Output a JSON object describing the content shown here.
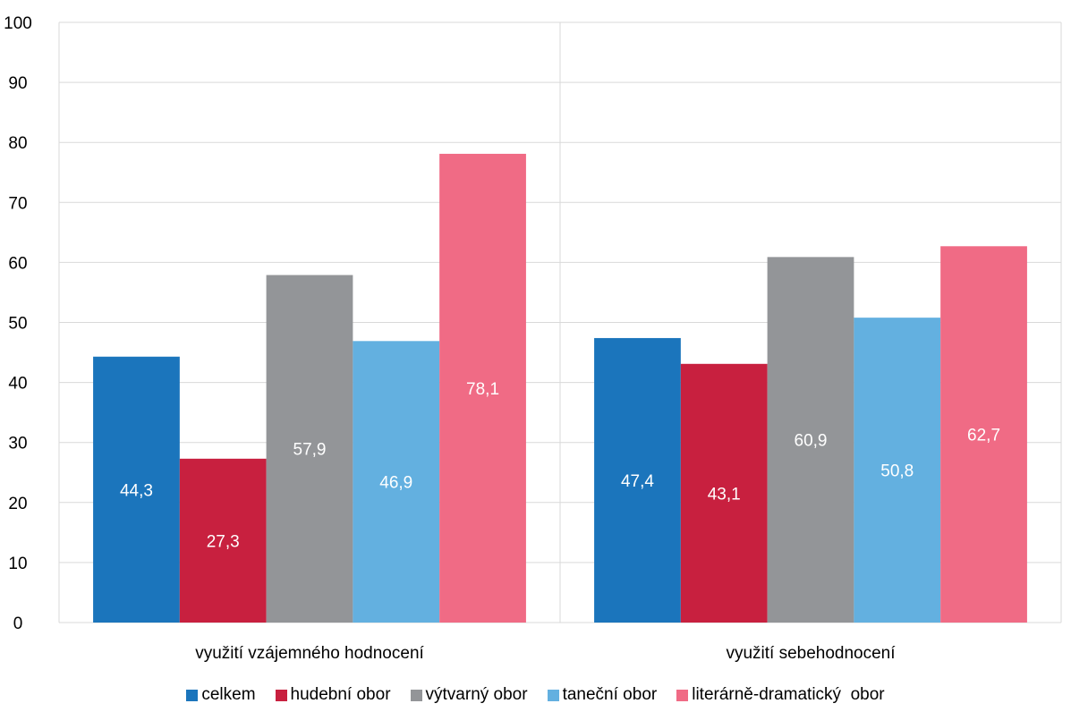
{
  "chart_data": {
    "type": "bar",
    "categories": [
      "využití vzájemného hodnocení",
      "využití sebehodnocení"
    ],
    "series": [
      {
        "name": "celkem",
        "color": "#1b75bc",
        "values": [
          44.3,
          47.4
        ],
        "labels": [
          "44,3",
          "47,4"
        ]
      },
      {
        "name": "hudební obor",
        "color": "#c8203f",
        "values": [
          27.3,
          43.1
        ],
        "labels": [
          "27,3",
          "43,1"
        ]
      },
      {
        "name": "výtvarný obor",
        "color": "#939598",
        "values": [
          57.9,
          60.9
        ],
        "labels": [
          "57,9",
          "60,9"
        ]
      },
      {
        "name": "taneční obor",
        "color": "#63b0e0",
        "values": [
          46.9,
          50.8
        ],
        "labels": [
          "46,9",
          "50,8"
        ]
      },
      {
        "name": "literárně-dramatický  obor",
        "color": "#f06b85",
        "values": [
          78.1,
          62.7
        ],
        "labels": [
          "78,1",
          "62,7"
        ]
      }
    ],
    "ylim": [
      0,
      100
    ],
    "yticks": [
      "0",
      "10",
      "20",
      "30",
      "40",
      "50",
      "60",
      "70",
      "80",
      "90",
      "100"
    ],
    "grid": true,
    "legend": "bottom",
    "data_label_color": "#ffffff"
  }
}
